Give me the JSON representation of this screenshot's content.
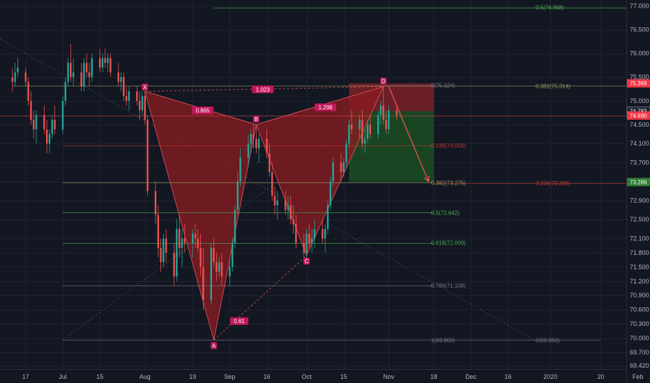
{
  "colors": {
    "background": "#131722",
    "grid": "#1e2330",
    "up": "#26a69a",
    "down": "#ef5350",
    "pattern_fill": "#8c1c22",
    "pattern_stroke": "#d14a55",
    "label_bg": "#c2185b",
    "fib_yellow": "#9a9a5a",
    "fib_red": "#c0392b",
    "fib_green": "#4caf50",
    "fib_gray": "#787b86",
    "stop_zone": "#7a2128",
    "target_zone": "#1b4a23",
    "arrow": "#ef5350",
    "price_tag_red": "#f23645",
    "price_tag_green": "#2e7d32"
  },
  "time_axis": {
    "labels": [
      "17",
      "Jul",
      "15",
      "Aug",
      "19",
      "Sep",
      "16",
      "Oct",
      "15",
      "Nov",
      "18",
      "Dec",
      "16",
      "2020",
      "20",
      "Feb"
    ]
  },
  "price_axis": {
    "ticks": [
      "77.000",
      "76.500",
      "76.000",
      "75.500",
      "75.000",
      "74.500",
      "74.100",
      "73.700",
      "73.300",
      "72.900",
      "72.500",
      "72.100",
      "71.800",
      "71.500",
      "71.200",
      "70.900",
      "70.600",
      "70.300",
      "70.000",
      "69.700",
      "69.420"
    ]
  },
  "price_tags": [
    {
      "text": "75.369",
      "price": 75.369,
      "style": "red"
    },
    {
      "text": "74.783",
      "price": 74.783,
      "style": "dark"
    },
    {
      "text": "74.690",
      "price": 74.69,
      "style": "red"
    },
    {
      "text": "73.289",
      "price": 73.289,
      "style": "green"
    }
  ],
  "harmonic_pattern": {
    "points": [
      {
        "label": "X",
        "date": "Aug 1",
        "price": 75.2
      },
      {
        "label": "A",
        "date": "Aug 27",
        "price": 69.96
      },
      {
        "label": "B",
        "date": "Sep 12",
        "price": 74.5
      },
      {
        "label": "C",
        "date": "Oct 1",
        "price": 71.74
      },
      {
        "label": "D",
        "date": "Oct 30",
        "price": 75.3
      }
    ],
    "ratios": [
      "0.865",
      "0.61",
      "1.298",
      "1.023"
    ]
  },
  "fib_levels": [
    {
      "text": "0.5(76.968)",
      "price": 76.968,
      "color": "green"
    },
    {
      "text": "0(75.324)",
      "price": 75.324,
      "color": "gray"
    },
    {
      "text": "0.382(75.314)",
      "price": 75.314,
      "color": "yellow"
    },
    {
      "text": "0.236(74.058)",
      "price": 74.058,
      "color": "red"
    },
    {
      "text": "0.382(73.275)",
      "price": 73.275,
      "color": "yellow"
    },
    {
      "text": "0.236(73.268)",
      "price": 73.268,
      "color": "red"
    },
    {
      "text": "0.5(72.642)",
      "price": 72.642,
      "color": "green"
    },
    {
      "text": "0.618(72.009)",
      "price": 72.009,
      "color": "green"
    },
    {
      "text": "0.786(71.108)",
      "price": 71.108,
      "color": "gray"
    },
    {
      "text": "1(69.960)",
      "price": 69.96,
      "color": "gray"
    },
    {
      "text": "0(69.960)",
      "price": 69.96,
      "color": "gray"
    }
  ],
  "position": {
    "entry": 74.783,
    "stop": 75.369,
    "target": 73.289
  },
  "chart_data": {
    "type": "candlestick",
    "instrument": "",
    "x_range": [
      "Jun 12",
      "Feb 18"
    ],
    "ylim": [
      69.42,
      77.0
    ],
    "grid": true,
    "candles": [
      {
        "date": "Jun 12",
        "o": 75.5,
        "h": 75.7,
        "l": 75.2,
        "c": 75.4
      },
      {
        "date": "Jun 13",
        "o": 75.4,
        "h": 75.8,
        "l": 75.3,
        "c": 75.6
      },
      {
        "date": "Jun 14",
        "o": 75.6,
        "h": 75.9,
        "l": 75.5,
        "c": 75.7
      },
      {
        "date": "Jun 17",
        "o": 75.6,
        "h": 75.7,
        "l": 75.3,
        "c": 75.4
      },
      {
        "date": "Jun 18",
        "o": 75.4,
        "h": 75.5,
        "l": 74.9,
        "c": 75.0
      },
      {
        "date": "Jun 19",
        "o": 75.0,
        "h": 75.2,
        "l": 74.5,
        "c": 74.6
      },
      {
        "date": "Jun 20",
        "o": 74.6,
        "h": 74.8,
        "l": 74.2,
        "c": 74.4
      },
      {
        "date": "Jun 21",
        "o": 74.4,
        "h": 74.8,
        "l": 74.1,
        "c": 74.7
      },
      {
        "date": "Jun 24",
        "o": 74.7,
        "h": 74.9,
        "l": 74.3,
        "c": 74.4
      },
      {
        "date": "Jun 25",
        "o": 74.4,
        "h": 74.6,
        "l": 73.9,
        "c": 74.1
      },
      {
        "date": "Jun 26",
        "o": 74.1,
        "h": 74.4,
        "l": 73.9,
        "c": 74.3
      },
      {
        "date": "Jun 27",
        "o": 74.3,
        "h": 74.7,
        "l": 74.2,
        "c": 74.6
      },
      {
        "date": "Jun 28",
        "o": 74.6,
        "h": 74.9,
        "l": 74.3,
        "c": 74.4
      },
      {
        "date": "Jul 1",
        "o": 74.4,
        "h": 75.1,
        "l": 74.3,
        "c": 75.0
      },
      {
        "date": "Jul 2",
        "o": 75.0,
        "h": 75.5,
        "l": 74.9,
        "c": 75.4
      },
      {
        "date": "Jul 3",
        "o": 75.4,
        "h": 75.9,
        "l": 75.3,
        "c": 75.8
      },
      {
        "date": "Jul 4",
        "o": 75.8,
        "h": 76.2,
        "l": 75.4,
        "c": 75.5
      },
      {
        "date": "Jul 5",
        "o": 75.5,
        "h": 75.9,
        "l": 75.3,
        "c": 75.6
      },
      {
        "date": "Jul 8",
        "o": 75.6,
        "h": 75.8,
        "l": 75.2,
        "c": 75.3
      },
      {
        "date": "Jul 9",
        "o": 75.3,
        "h": 75.9,
        "l": 75.2,
        "c": 75.8
      },
      {
        "date": "Jul 10",
        "o": 75.8,
        "h": 76.0,
        "l": 75.5,
        "c": 75.6
      },
      {
        "date": "Jul 11",
        "o": 75.6,
        "h": 75.8,
        "l": 75.3,
        "c": 75.5
      },
      {
        "date": "Jul 12",
        "o": 75.5,
        "h": 76.0,
        "l": 75.4,
        "c": 75.9
      },
      {
        "date": "Jul 15",
        "o": 75.9,
        "h": 76.1,
        "l": 75.6,
        "c": 75.7
      },
      {
        "date": "Jul 16",
        "o": 75.7,
        "h": 76.0,
        "l": 75.6,
        "c": 75.9
      },
      {
        "date": "Jul 17",
        "o": 75.9,
        "h": 76.1,
        "l": 75.7,
        "c": 75.8
      },
      {
        "date": "Jul 18",
        "o": 75.8,
        "h": 76.0,
        "l": 75.6,
        "c": 75.9
      },
      {
        "date": "Jul 19",
        "o": 75.9,
        "h": 76.0,
        "l": 75.5,
        "c": 75.6
      },
      {
        "date": "Jul 22",
        "o": 75.6,
        "h": 75.8,
        "l": 75.3,
        "c": 75.4
      },
      {
        "date": "Jul 23",
        "o": 75.4,
        "h": 75.6,
        "l": 75.2,
        "c": 75.5
      },
      {
        "date": "Jul 24",
        "o": 75.5,
        "h": 75.6,
        "l": 75.0,
        "c": 75.1
      },
      {
        "date": "Jul 25",
        "o": 75.1,
        "h": 75.3,
        "l": 74.9,
        "c": 75.0
      },
      {
        "date": "Jul 26",
        "o": 75.0,
        "h": 75.3,
        "l": 74.8,
        "c": 75.2
      },
      {
        "date": "Jul 29",
        "o": 75.2,
        "h": 75.3,
        "l": 74.9,
        "c": 75.0
      },
      {
        "date": "Jul 30",
        "o": 75.0,
        "h": 75.2,
        "l": 74.6,
        "c": 74.8
      },
      {
        "date": "Jul 31",
        "o": 74.8,
        "h": 75.2,
        "l": 74.7,
        "c": 75.1
      },
      {
        "date": "Aug 1",
        "o": 75.1,
        "h": 75.2,
        "l": 74.5,
        "c": 74.6
      },
      {
        "date": "Aug 2",
        "o": 74.6,
        "h": 74.7,
        "l": 73.0,
        "c": 73.1
      },
      {
        "date": "Aug 5",
        "o": 73.1,
        "h": 73.3,
        "l": 72.4,
        "c": 72.6
      },
      {
        "date": "Aug 6",
        "o": 72.6,
        "h": 72.8,
        "l": 71.7,
        "c": 71.9
      },
      {
        "date": "Aug 7",
        "o": 71.9,
        "h": 72.1,
        "l": 71.4,
        "c": 71.6
      },
      {
        "date": "Aug 8",
        "o": 71.6,
        "h": 72.2,
        "l": 71.5,
        "c": 72.1
      },
      {
        "date": "Aug 9",
        "o": 72.1,
        "h": 72.3,
        "l": 71.6,
        "c": 71.8
      },
      {
        "date": "Aug 12",
        "o": 71.8,
        "h": 72.0,
        "l": 71.1,
        "c": 71.3
      },
      {
        "date": "Aug 13",
        "o": 71.3,
        "h": 72.5,
        "l": 71.2,
        "c": 72.3
      },
      {
        "date": "Aug 14",
        "o": 72.3,
        "h": 72.6,
        "l": 71.7,
        "c": 71.9
      },
      {
        "date": "Aug 15",
        "o": 71.9,
        "h": 72.3,
        "l": 71.5,
        "c": 72.1
      },
      {
        "date": "Aug 16",
        "o": 72.1,
        "h": 72.4,
        "l": 71.8,
        "c": 72.0
      },
      {
        "date": "Aug 19",
        "o": 72.0,
        "h": 72.3,
        "l": 71.7,
        "c": 72.2
      },
      {
        "date": "Aug 20",
        "o": 72.2,
        "h": 72.4,
        "l": 71.9,
        "c": 72.1
      },
      {
        "date": "Aug 21",
        "o": 72.1,
        "h": 72.3,
        "l": 71.8,
        "c": 71.9
      },
      {
        "date": "Aug 22",
        "o": 71.9,
        "h": 72.2,
        "l": 71.3,
        "c": 71.5
      },
      {
        "date": "Aug 23",
        "o": 71.5,
        "h": 71.9,
        "l": 70.6,
        "c": 70.8
      },
      {
        "date": "Aug 26",
        "o": 70.8,
        "h": 72.0,
        "l": 70.7,
        "c": 71.9
      },
      {
        "date": "Aug 27",
        "o": 71.9,
        "h": 72.1,
        "l": 71.5,
        "c": 71.6
      },
      {
        "date": "Aug 28",
        "o": 71.6,
        "h": 71.8,
        "l": 71.2,
        "c": 71.4
      },
      {
        "date": "Aug 29",
        "o": 71.4,
        "h": 71.7,
        "l": 71.3,
        "c": 71.6
      },
      {
        "date": "Aug 30",
        "o": 71.6,
        "h": 71.8,
        "l": 71.1,
        "c": 71.3
      },
      {
        "date": "Sep 2",
        "o": 71.3,
        "h": 71.7,
        "l": 71.1,
        "c": 71.5
      },
      {
        "date": "Sep 3",
        "o": 71.5,
        "h": 72.1,
        "l": 71.4,
        "c": 72.0
      },
      {
        "date": "Sep 4",
        "o": 72.0,
        "h": 72.8,
        "l": 71.9,
        "c": 72.7
      },
      {
        "date": "Sep 5",
        "o": 72.7,
        "h": 73.5,
        "l": 72.6,
        "c": 73.3
      },
      {
        "date": "Sep 6",
        "o": 73.3,
        "h": 74.0,
        "l": 73.2,
        "c": 73.8
      },
      {
        "date": "Sep 9",
        "o": 73.8,
        "h": 74.3,
        "l": 73.6,
        "c": 74.1
      },
      {
        "date": "Sep 10",
        "o": 74.1,
        "h": 74.4,
        "l": 73.9,
        "c": 74.3
      },
      {
        "date": "Sep 11",
        "o": 74.3,
        "h": 74.5,
        "l": 74.0,
        "c": 74.2
      },
      {
        "date": "Sep 12",
        "o": 74.2,
        "h": 74.5,
        "l": 73.9,
        "c": 74.0
      },
      {
        "date": "Sep 13",
        "o": 74.0,
        "h": 74.3,
        "l": 73.7,
        "c": 74.2
      },
      {
        "date": "Sep 16",
        "o": 74.2,
        "h": 74.4,
        "l": 73.8,
        "c": 73.9
      },
      {
        "date": "Sep 17",
        "o": 73.9,
        "h": 74.1,
        "l": 73.4,
        "c": 73.5
      },
      {
        "date": "Sep 18",
        "o": 73.5,
        "h": 73.7,
        "l": 72.9,
        "c": 73.0
      },
      {
        "date": "Sep 19",
        "o": 73.0,
        "h": 73.2,
        "l": 72.6,
        "c": 72.8
      },
      {
        "date": "Sep 20",
        "o": 72.8,
        "h": 73.1,
        "l": 72.5,
        "c": 72.9
      },
      {
        "date": "Sep 23",
        "o": 72.9,
        "h": 73.1,
        "l": 72.6,
        "c": 72.7
      },
      {
        "date": "Sep 24",
        "o": 72.7,
        "h": 73.0,
        "l": 72.5,
        "c": 72.8
      },
      {
        "date": "Sep 25",
        "o": 72.8,
        "h": 73.0,
        "l": 72.4,
        "c": 72.5
      },
      {
        "date": "Sep 26",
        "o": 72.5,
        "h": 72.8,
        "l": 72.2,
        "c": 72.4
      },
      {
        "date": "Sep 27",
        "o": 72.4,
        "h": 72.6,
        "l": 71.9,
        "c": 72.0
      },
      {
        "date": "Sep 30",
        "o": 72.0,
        "h": 72.2,
        "l": 71.7,
        "c": 71.8
      },
      {
        "date": "Oct 1",
        "o": 71.8,
        "h": 72.3,
        "l": 71.7,
        "c": 72.2
      },
      {
        "date": "Oct 2",
        "o": 72.2,
        "h": 72.4,
        "l": 71.9,
        "c": 72.0
      },
      {
        "date": "Oct 3",
        "o": 72.0,
        "h": 72.3,
        "l": 71.8,
        "c": 72.1
      },
      {
        "date": "Oct 4",
        "o": 72.1,
        "h": 72.5,
        "l": 71.9,
        "c": 72.3
      },
      {
        "date": "Oct 7",
        "o": 72.3,
        "h": 72.5,
        "l": 72.0,
        "c": 72.1
      },
      {
        "date": "Oct 8",
        "o": 72.1,
        "h": 72.4,
        "l": 71.8,
        "c": 72.3
      },
      {
        "date": "Oct 9",
        "o": 72.3,
        "h": 72.9,
        "l": 72.2,
        "c": 72.8
      },
      {
        "date": "Oct 10",
        "o": 72.8,
        "h": 73.4,
        "l": 72.7,
        "c": 73.3
      },
      {
        "date": "Oct 11",
        "o": 73.3,
        "h": 73.8,
        "l": 73.2,
        "c": 73.7
      },
      {
        "date": "Oct 14",
        "o": 73.7,
        "h": 73.9,
        "l": 73.3,
        "c": 73.5
      },
      {
        "date": "Oct 15",
        "o": 73.5,
        "h": 73.8,
        "l": 73.4,
        "c": 73.7
      },
      {
        "date": "Oct 16",
        "o": 73.7,
        "h": 74.2,
        "l": 73.6,
        "c": 74.1
      },
      {
        "date": "Oct 17",
        "o": 74.1,
        "h": 74.6,
        "l": 74.0,
        "c": 74.5
      },
      {
        "date": "Oct 18",
        "o": 74.5,
        "h": 74.8,
        "l": 74.3,
        "c": 74.4
      },
      {
        "date": "Oct 21",
        "o": 74.4,
        "h": 74.7,
        "l": 74.2,
        "c": 74.6
      },
      {
        "date": "Oct 22",
        "o": 74.6,
        "h": 74.8,
        "l": 74.0,
        "c": 74.1
      },
      {
        "date": "Oct 23",
        "o": 74.1,
        "h": 74.4,
        "l": 73.9,
        "c": 74.2
      },
      {
        "date": "Oct 24",
        "o": 74.2,
        "h": 74.6,
        "l": 74.1,
        "c": 74.5
      },
      {
        "date": "Oct 25",
        "o": 74.5,
        "h": 74.7,
        "l": 74.2,
        "c": 74.3
      },
      {
        "date": "Oct 28",
        "o": 74.3,
        "h": 74.8,
        "l": 74.2,
        "c": 74.7
      },
      {
        "date": "Oct 29",
        "o": 74.7,
        "h": 75.0,
        "l": 74.5,
        "c": 74.9
      },
      {
        "date": "Oct 30",
        "o": 74.9,
        "h": 75.3,
        "l": 74.5,
        "c": 74.6
      },
      {
        "date": "Oct 31",
        "o": 74.6,
        "h": 74.8,
        "l": 74.3,
        "c": 74.4
      },
      {
        "date": "Nov 1",
        "o": 74.4,
        "h": 74.9,
        "l": 74.3,
        "c": 74.8
      },
      {
        "date": "Nov 4",
        "o": 74.8,
        "h": 74.9,
        "l": 74.6,
        "c": 74.7
      }
    ]
  }
}
